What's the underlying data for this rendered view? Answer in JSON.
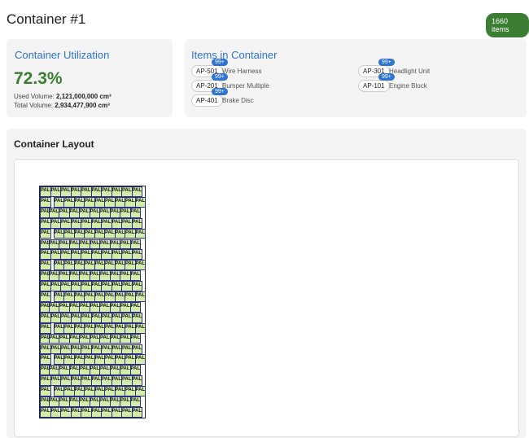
{
  "header": {
    "title": "Container #1",
    "count_badge": "1660 items"
  },
  "utilization": {
    "title": "Container Utilization",
    "percent": "72.3%",
    "used_label": "Used Volume:",
    "used_value": "2,121,000,000 cm³",
    "total_label": "Total Volume:",
    "total_value": "2,934,477,900 cm³"
  },
  "items": {
    "title": "Items in Container",
    "list": [
      {
        "code": "AP-501",
        "count": "99+",
        "name": "Wire Harness"
      },
      {
        "code": "AP-301",
        "count": "99+",
        "name": "Headlight Unit"
      },
      {
        "code": "AP-201",
        "count": "99+",
        "name": "Bumper Multiple"
      },
      {
        "code": "AP-101",
        "count": "99+",
        "name": "Engine Block"
      },
      {
        "code": "AP-401",
        "count": "99+",
        "name": "Brake Disc"
      }
    ]
  },
  "layout": {
    "title": "Container Layout",
    "cell_label": "PAL1",
    "colors": {
      "cell": "#d3ecaa",
      "border": "#2b2f8a"
    }
  }
}
